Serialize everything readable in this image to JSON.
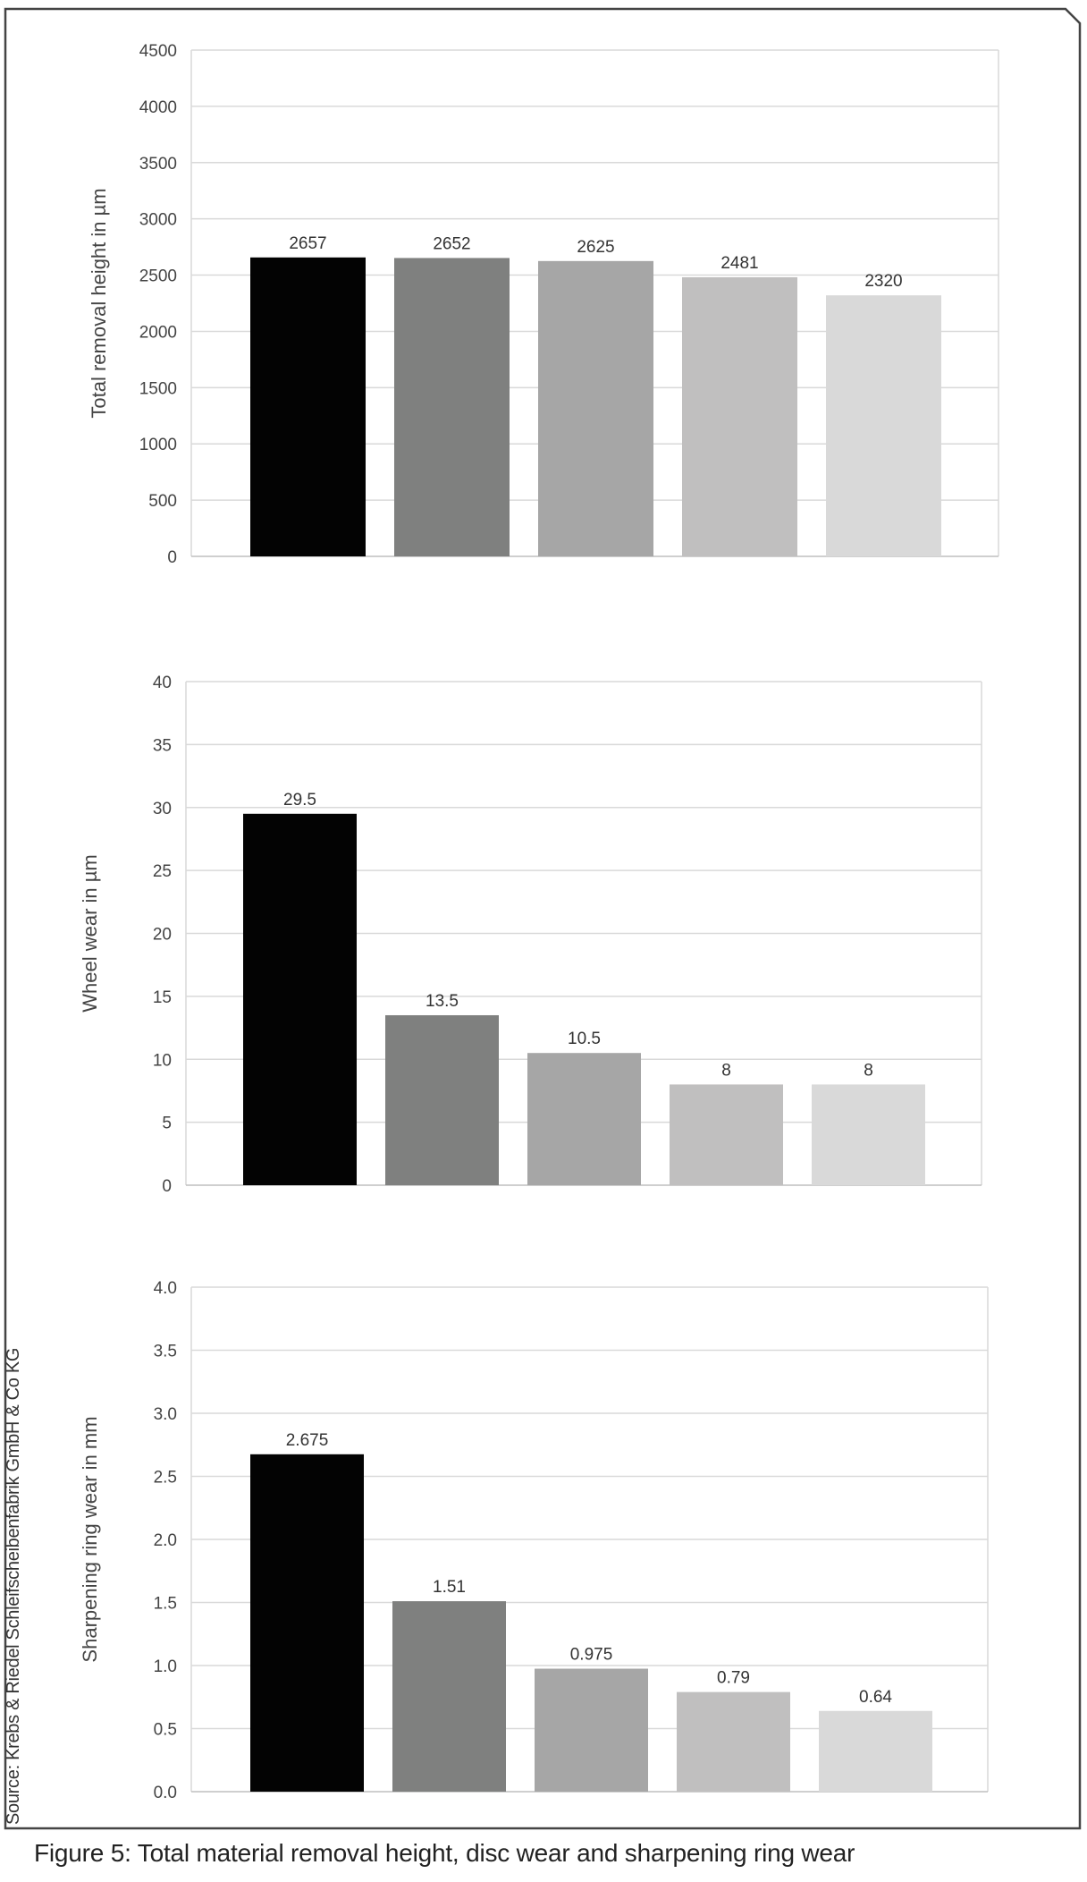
{
  "caption": "Figure 5: Total material removal height, disc wear and sharpening ring wear",
  "source": "Source: Krebs & Riedel Schleifscheibenfabrik GmbH & Co KG",
  "colors": {
    "bars": [
      "#030303",
      "#7f807f",
      "#a6a6a6",
      "#c0bfbf",
      "#d9d9d9"
    ],
    "grid": "#d9d9d9",
    "frame": "#444444"
  },
  "chart_data": [
    {
      "type": "bar",
      "categories": [
        "",
        "",
        "",
        "",
        ""
      ],
      "values": [
        2657,
        2652,
        2625,
        2481,
        2320
      ],
      "data_labels": [
        "2657",
        "2652",
        "2625",
        "2481",
        "2320"
      ],
      "title": "",
      "xlabel": "",
      "ylabel": "Total removal height in µm",
      "ylim": [
        0,
        4500
      ],
      "yticks": [
        0,
        500,
        1000,
        1500,
        2000,
        2500,
        3000,
        3500,
        4000,
        4500
      ],
      "ytick_labels": [
        "0",
        "500",
        "1000",
        "1500",
        "2000",
        "2500",
        "3000",
        "3500",
        "4000",
        "4500"
      ],
      "grid": true,
      "legend": "none"
    },
    {
      "type": "bar",
      "categories": [
        "",
        "",
        "",
        "",
        ""
      ],
      "values": [
        29.5,
        13.5,
        10.5,
        8,
        8
      ],
      "data_labels": [
        "29.5",
        "13.5",
        "10.5",
        "8",
        "8"
      ],
      "title": "",
      "xlabel": "",
      "ylabel": "Wheel wear  in µm",
      "ylim": [
        0,
        40
      ],
      "yticks": [
        0,
        5,
        10,
        15,
        20,
        25,
        30,
        35,
        40
      ],
      "ytick_labels": [
        "0",
        "5",
        "10",
        "15",
        "20",
        "25",
        "30",
        "35",
        "40"
      ],
      "grid": true,
      "legend": "none"
    },
    {
      "type": "bar",
      "categories": [
        "",
        "",
        "",
        "",
        ""
      ],
      "values": [
        2.675,
        1.51,
        0.975,
        0.79,
        0.64
      ],
      "data_labels": [
        "2.675",
        "1.51",
        "0.975",
        "0.79",
        "0.64"
      ],
      "title": "",
      "xlabel": "",
      "ylabel": "Sharpening ring wear in mm",
      "ylim": [
        0,
        4
      ],
      "yticks": [
        0,
        0.5,
        1,
        1.5,
        2,
        2.5,
        3,
        3.5,
        4
      ],
      "ytick_labels": [
        "0.0",
        "0.5",
        "1.0",
        "1.5",
        "2.0",
        "2.5",
        "3.0",
        "3.5",
        "4.0"
      ],
      "grid": true,
      "legend": "none"
    }
  ]
}
